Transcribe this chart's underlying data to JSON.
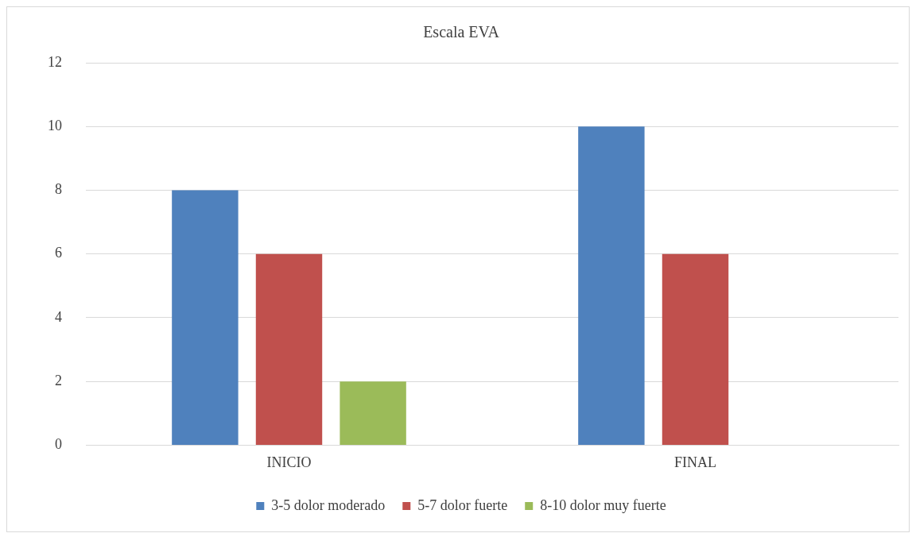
{
  "chart_data": {
    "type": "bar",
    "title": "Escala EVA",
    "categories": [
      "INICIO",
      "FINAL"
    ],
    "series": [
      {
        "name": "3-5 dolor moderado",
        "color": "#4f81bd",
        "values": [
          8,
          10
        ]
      },
      {
        "name": "5-7 dolor fuerte",
        "color": "#c0504d",
        "values": [
          6,
          6
        ]
      },
      {
        "name": "8-10 dolor muy fuerte",
        "color": "#9bbb59",
        "values": [
          2,
          0
        ]
      }
    ],
    "ylim": [
      0,
      12
    ],
    "yticks": [
      0,
      2,
      4,
      6,
      8,
      10,
      12
    ],
    "grid": "y",
    "legend": "bottom"
  }
}
